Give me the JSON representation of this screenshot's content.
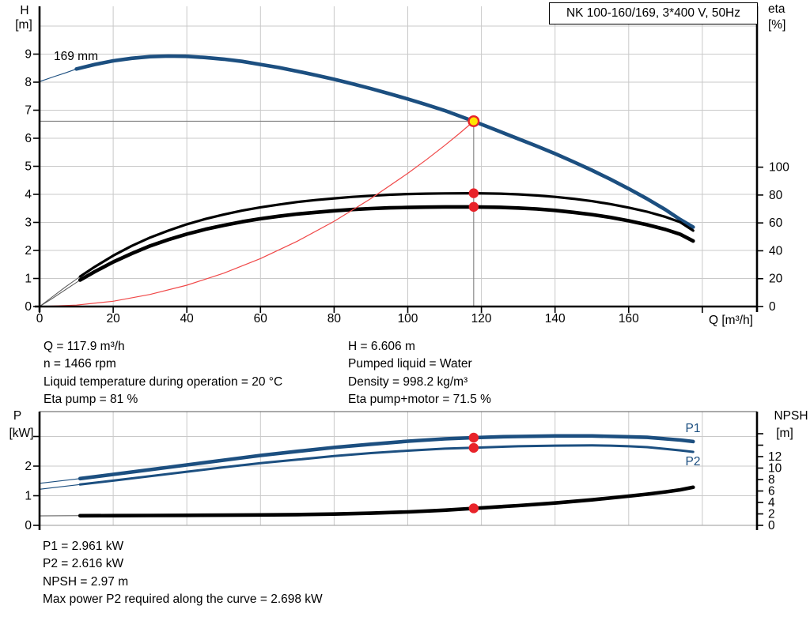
{
  "title_box": "NK 100-160/169, 3*400 V, 50Hz",
  "axis_labels": {
    "h": "H",
    "h_unit": "[m]",
    "eta": "eta",
    "eta_unit": "[%]",
    "q": "Q [m³/h]",
    "p": "P",
    "p_unit": "[kW]",
    "npsh": "NPSH",
    "npsh_unit": "[m]"
  },
  "curve_labels": {
    "p1": "P1",
    "p2": "P2"
  },
  "colors": {
    "blue": "#1c4f80",
    "black": "#000000",
    "red": "#e8232a",
    "red_curve": "#f04848",
    "yellow": "#ffe400",
    "grid": "#c9c9c9",
    "guide": "#7f7f7f",
    "hair": "#555555"
  },
  "info_top_left": [
    "Q = 117.9 m³/h",
    "n = 1466 rpm",
    "Liquid temperature during operation = 20 °C",
    "Eta pump = 81 %"
  ],
  "info_top_right": [
    "H = 6.606 m",
    "Pumped liquid = Water",
    "Density = 998.2 kg/m³",
    "Eta pump+motor = 71.5 %"
  ],
  "info_bottom": [
    "P1 = 2.961 kW",
    "P2 = 2.616 kW",
    "NPSH = 2.97 m",
    "Max power P2 required along the curve = 2.698 kW"
  ],
  "chart_data": [
    {
      "type": "line",
      "title": "Pump head and efficiency vs flow",
      "impeller_label": "169 mm",
      "x_axis": {
        "label": "Q [m³/h]",
        "tick_labels": [
          "0",
          "20",
          "40",
          "60",
          "80",
          "100",
          "120",
          "140",
          "160"
        ],
        "extra_ticks": [
          180
        ],
        "grid_values": [
          20,
          40,
          60,
          80,
          100,
          120,
          140,
          160,
          180
        ],
        "range": [
          0,
          194.8
        ]
      },
      "y_left": {
        "label": "H [m]",
        "tick_labels": [
          "0",
          "1",
          "2",
          "3",
          "4",
          "5",
          "6",
          "7",
          "8",
          "9"
        ],
        "extra_ticks": [],
        "grid_values": [
          1,
          2,
          3,
          4,
          5,
          6,
          7,
          8,
          9,
          10
        ],
        "range": [
          0,
          10.7
        ]
      },
      "y_right": {
        "label": "eta [%]",
        "tick_labels": [
          "0",
          "20",
          "40",
          "60",
          "80",
          "100"
        ],
        "extra_ticks": [],
        "range": [
          0,
          215
        ]
      },
      "duty_point": {
        "q": 117.9,
        "h": 6.606
      },
      "eta_markers": [
        {
          "q": 117.9,
          "eta": 81.3
        },
        {
          "q": 117.9,
          "eta": 71.5
        }
      ],
      "series": [
        {
          "name": "hq-curve-start",
          "axis": "h",
          "style": "blue-hair",
          "points": [
            [
              0,
              8.02
            ],
            [
              4,
              8.2
            ],
            [
              7,
              8.33
            ],
            [
              10,
              8.47
            ]
          ]
        },
        {
          "name": "hq-curve-169mm",
          "axis": "h",
          "style": "blue-thick",
          "points": [
            [
              10,
              8.47
            ],
            [
              15,
              8.63
            ],
            [
              20,
              8.76
            ],
            [
              25,
              8.85
            ],
            [
              30,
              8.91
            ],
            [
              35,
              8.93
            ],
            [
              40,
              8.92
            ],
            [
              45,
              8.88
            ],
            [
              50,
              8.82
            ],
            [
              55,
              8.74
            ],
            [
              60,
              8.63
            ],
            [
              65,
              8.52
            ],
            [
              70,
              8.39
            ],
            [
              75,
              8.25
            ],
            [
              80,
              8.1
            ],
            [
              85,
              7.94
            ],
            [
              90,
              7.77
            ],
            [
              95,
              7.59
            ],
            [
              100,
              7.4
            ],
            [
              105,
              7.2
            ],
            [
              110,
              6.99
            ],
            [
              117.9,
              6.606
            ],
            [
              125,
              6.24
            ],
            [
              130,
              5.98
            ],
            [
              135,
              5.72
            ],
            [
              140,
              5.45
            ],
            [
              145,
              5.16
            ],
            [
              150,
              4.86
            ],
            [
              155,
              4.54
            ],
            [
              160,
              4.2
            ],
            [
              165,
              3.84
            ],
            [
              170,
              3.45
            ],
            [
              174,
              3.1
            ],
            [
              177.5,
              2.83
            ]
          ]
        },
        {
          "name": "eta-pump-start",
          "axis": "eta",
          "style": "black-hair",
          "points": [
            [
              0,
              0
            ],
            [
              3,
              6
            ],
            [
              7,
              14
            ],
            [
              11,
              21.5
            ]
          ]
        },
        {
          "name": "eta-pump-curve",
          "axis": "eta",
          "style": "black-thin",
          "points": [
            [
              11,
              21.5
            ],
            [
              15,
              28.5
            ],
            [
              20,
              36.5
            ],
            [
              25,
              43.5
            ],
            [
              30,
              49.5
            ],
            [
              35,
              54.5
            ],
            [
              40,
              59
            ],
            [
              45,
              62.8
            ],
            [
              50,
              66
            ],
            [
              55,
              68.8
            ],
            [
              60,
              71.2
            ],
            [
              65,
              73.2
            ],
            [
              70,
              75
            ],
            [
              75,
              76.4
            ],
            [
              80,
              77.6
            ],
            [
              85,
              78.7
            ],
            [
              90,
              79.5
            ],
            [
              95,
              80.2
            ],
            [
              100,
              80.7
            ],
            [
              105,
              81
            ],
            [
              110,
              81.2
            ],
            [
              117.9,
              81.3
            ],
            [
              125,
              81
            ],
            [
              130,
              80.5
            ],
            [
              135,
              79.7
            ],
            [
              140,
              78.7
            ],
            [
              145,
              77.3
            ],
            [
              150,
              75.6
            ],
            [
              155,
              73.5
            ],
            [
              160,
              71
            ],
            [
              165,
              68
            ],
            [
              170,
              64.3
            ],
            [
              174,
              60.5
            ],
            [
              177.5,
              54.5
            ]
          ]
        },
        {
          "name": "eta-pump-motor-start",
          "axis": "eta",
          "style": "black-hair",
          "points": [
            [
              0,
              0
            ],
            [
              3,
              5
            ],
            [
              7,
              12
            ],
            [
              11,
              19
            ]
          ]
        },
        {
          "name": "eta-pump-motor-curve",
          "axis": "eta",
          "style": "black-thick",
          "points": [
            [
              11,
              19
            ],
            [
              15,
              25
            ],
            [
              20,
              32
            ],
            [
              25,
              38
            ],
            [
              30,
              43.5
            ],
            [
              35,
              48
            ],
            [
              40,
              52
            ],
            [
              45,
              55.4
            ],
            [
              50,
              58.3
            ],
            [
              55,
              60.8
            ],
            [
              60,
              63
            ],
            [
              65,
              64.8
            ],
            [
              70,
              66.4
            ],
            [
              75,
              67.6
            ],
            [
              80,
              68.7
            ],
            [
              85,
              69.6
            ],
            [
              90,
              70.3
            ],
            [
              95,
              70.8
            ],
            [
              100,
              71.1
            ],
            [
              105,
              71.3
            ],
            [
              110,
              71.5
            ],
            [
              117.9,
              71.5
            ],
            [
              125,
              71.2
            ],
            [
              130,
              70.7
            ],
            [
              135,
              70
            ],
            [
              140,
              69
            ],
            [
              145,
              67.6
            ],
            [
              150,
              66
            ],
            [
              155,
              64
            ],
            [
              160,
              61.5
            ],
            [
              165,
              58.7
            ],
            [
              170,
              55.3
            ],
            [
              174,
              51.8
            ],
            [
              177.5,
              47
            ]
          ]
        },
        {
          "name": "system-curve",
          "axis": "h",
          "style": "red-thin",
          "points": [
            [
              0,
              0
            ],
            [
              10,
              0.05
            ],
            [
              20,
              0.19
            ],
            [
              30,
              0.43
            ],
            [
              40,
              0.76
            ],
            [
              50,
              1.19
            ],
            [
              60,
              1.71
            ],
            [
              70,
              2.33
            ],
            [
              80,
              3.04
            ],
            [
              90,
              3.85
            ],
            [
              100,
              4.75
            ],
            [
              105,
              5.23
            ],
            [
              110,
              5.74
            ],
            [
              114,
              6.17
            ],
            [
              117.9,
              6.606
            ]
          ]
        }
      ]
    },
    {
      "type": "line",
      "title": "Power and NPSH vs flow",
      "x_axis": {
        "grid_values": [
          20,
          40,
          60,
          80,
          100,
          120,
          140,
          160,
          180
        ],
        "range": [
          0,
          194.8
        ]
      },
      "y_left": {
        "label": "P [kW]",
        "tick_labels": [
          "0",
          "1",
          "2"
        ],
        "extra_ticks": [
          3
        ],
        "grid_values": [
          1,
          2,
          3
        ],
        "range": [
          0,
          3.84
        ]
      },
      "y_right": {
        "label": "NPSH [m]",
        "tick_labels": [
          "0",
          "2",
          "4",
          "6",
          "8",
          "10",
          "12"
        ],
        "extra_ticks": [
          14,
          16
        ],
        "range": [
          0,
          19.9
        ]
      },
      "markers": [
        {
          "q": 117.9,
          "axis": "p",
          "v": 2.961,
          "series": "P1"
        },
        {
          "q": 117.9,
          "axis": "p",
          "v": 2.616,
          "series": "P2"
        },
        {
          "q": 117.9,
          "axis": "npsh",
          "v": 2.97,
          "series": "NPSH"
        }
      ],
      "series": [
        {
          "name": "p1-curve-start",
          "axis": "p",
          "style": "blue-hair",
          "points": [
            [
              0,
              1.42
            ],
            [
              5,
              1.49
            ],
            [
              11,
              1.58
            ]
          ]
        },
        {
          "name": "p1-curve",
          "axis": "p",
          "style": "blue-thick",
          "points": [
            [
              11,
              1.58
            ],
            [
              20,
              1.72
            ],
            [
              30,
              1.88
            ],
            [
              40,
              2.04
            ],
            [
              50,
              2.2
            ],
            [
              60,
              2.36
            ],
            [
              70,
              2.5
            ],
            [
              80,
              2.63
            ],
            [
              90,
              2.74
            ],
            [
              100,
              2.84
            ],
            [
              110,
              2.92
            ],
            [
              117.9,
              2.96
            ],
            [
              125,
              2.99
            ],
            [
              130,
              3.0
            ],
            [
              140,
              3.02
            ],
            [
              150,
              3.02
            ],
            [
              160,
              2.99
            ],
            [
              165,
              2.97
            ],
            [
              170,
              2.92
            ],
            [
              174,
              2.88
            ],
            [
              177.5,
              2.83
            ]
          ]
        },
        {
          "name": "p2-curve-start",
          "axis": "p",
          "style": "blue-hair",
          "points": [
            [
              0,
              1.22
            ],
            [
              5,
              1.29
            ],
            [
              11,
              1.38
            ]
          ]
        },
        {
          "name": "p2-curve",
          "axis": "p",
          "style": "blue-mid",
          "points": [
            [
              11,
              1.38
            ],
            [
              20,
              1.51
            ],
            [
              30,
              1.66
            ],
            [
              40,
              1.81
            ],
            [
              50,
              1.96
            ],
            [
              60,
              2.1
            ],
            [
              70,
              2.22
            ],
            [
              80,
              2.34
            ],
            [
              90,
              2.44
            ],
            [
              100,
              2.52
            ],
            [
              110,
              2.59
            ],
            [
              117.9,
              2.62
            ],
            [
              125,
              2.65
            ],
            [
              130,
              2.67
            ],
            [
              140,
              2.69
            ],
            [
              150,
              2.7
            ],
            [
              155,
              2.69
            ],
            [
              160,
              2.67
            ],
            [
              165,
              2.64
            ],
            [
              170,
              2.58
            ],
            [
              174,
              2.53
            ],
            [
              177.5,
              2.48
            ]
          ]
        },
        {
          "name": "npsh-curve-start",
          "axis": "npsh",
          "style": "black-hair",
          "points": [
            [
              0,
              1.66
            ],
            [
              11,
              1.68
            ]
          ]
        },
        {
          "name": "npsh-curve",
          "axis": "npsh",
          "style": "black-thick",
          "points": [
            [
              11,
              1.68
            ],
            [
              20,
              1.7
            ],
            [
              30,
              1.72
            ],
            [
              40,
              1.75
            ],
            [
              50,
              1.78
            ],
            [
              60,
              1.82
            ],
            [
              70,
              1.88
            ],
            [
              80,
              1.97
            ],
            [
              90,
              2.12
            ],
            [
              100,
              2.35
            ],
            [
              110,
              2.65
            ],
            [
              117.9,
              2.97
            ],
            [
              125,
              3.25
            ],
            [
              130,
              3.45
            ],
            [
              140,
              3.9
            ],
            [
              150,
              4.45
            ],
            [
              160,
              5.1
            ],
            [
              165,
              5.45
            ],
            [
              170,
              5.85
            ],
            [
              174,
              6.2
            ],
            [
              177.5,
              6.65
            ]
          ]
        }
      ]
    }
  ]
}
